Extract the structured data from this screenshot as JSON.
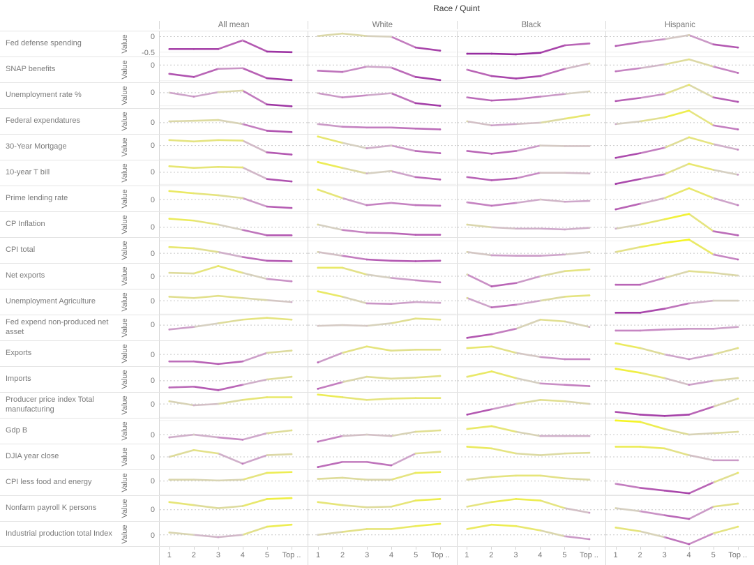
{
  "chart_data": {
    "type": "line",
    "layout": "small-multiples",
    "title": "Race / Quint",
    "column_headers": [
      "All mean",
      "White",
      "Black",
      "Hispanic"
    ],
    "x_categories": [
      "1",
      "2",
      "3",
      "4",
      "5",
      "Top .."
    ],
    "ylabel": "Value",
    "grid": "dashed-zero-line",
    "legend": "none",
    "color_encoding": {
      "encodes": "value",
      "low_color": "#8a1c97",
      "mid_color": "#d6d0c2",
      "high_color": "#fafa08",
      "stops": [
        [
          -0.65,
          "#8a1c97"
        ],
        [
          -0.45,
          "#a23ba6"
        ],
        [
          -0.28,
          "#b55cb3"
        ],
        [
          -0.15,
          "#c685c2"
        ],
        [
          -0.06,
          "#cfaacb"
        ],
        [
          0,
          "#d6d0c2"
        ],
        [
          0.07,
          "#dcd9a4"
        ],
        [
          0.18,
          "#e5e47e"
        ],
        [
          0.3,
          "#ecec57"
        ],
        [
          0.45,
          "#f4f42c"
        ],
        [
          0.6,
          "#fafa08"
        ]
      ]
    },
    "rows": [
      {
        "label": "Fed defense spending",
        "yticks": [
          0,
          -0.5
        ],
        "series": [
          [
            -0.4,
            -0.4,
            -0.4,
            -0.12,
            -0.48,
            -0.5
          ],
          [
            0.02,
            0.1,
            0.02,
            0.0,
            -0.35,
            -0.45
          ],
          [
            -0.55,
            -0.55,
            -0.57,
            -0.52,
            -0.28,
            -0.22
          ],
          [
            -0.3,
            -0.18,
            -0.08,
            0.05,
            -0.25,
            -0.35
          ]
        ]
      },
      {
        "label": "SNAP benefits",
        "yticks": [
          0
        ],
        "series": [
          [
            -0.28,
            -0.38,
            -0.12,
            -0.1,
            -0.42,
            -0.48
          ],
          [
            -0.18,
            -0.22,
            -0.05,
            -0.08,
            -0.38,
            -0.48
          ],
          [
            -0.15,
            -0.35,
            -0.43,
            -0.35,
            -0.12,
            0.05
          ],
          [
            -0.2,
            -0.1,
            0.02,
            0.18,
            -0.05,
            -0.25
          ]
        ]
      },
      {
        "label": "Unemployment rate %",
        "yticks": [
          0
        ],
        "series": [
          [
            0.0,
            -0.15,
            0.02,
            0.08,
            -0.45,
            -0.52
          ],
          [
            -0.02,
            -0.18,
            -0.1,
            -0.02,
            -0.4,
            -0.5
          ],
          [
            -0.18,
            -0.3,
            -0.25,
            -0.15,
            -0.05,
            0.05
          ],
          [
            -0.32,
            -0.2,
            -0.05,
            0.3,
            -0.18,
            -0.35
          ]
        ]
      },
      {
        "label": "Federal expendatures",
        "yticks": [
          0
        ],
        "series": [
          [
            0.05,
            0.07,
            0.1,
            -0.05,
            -0.3,
            -0.35
          ],
          [
            -0.05,
            -0.15,
            -0.18,
            -0.18,
            -0.22,
            -0.25
          ],
          [
            0.05,
            -0.1,
            -0.05,
            0.0,
            0.15,
            0.3
          ],
          [
            -0.05,
            0.05,
            0.2,
            0.45,
            -0.1,
            -0.25
          ]
        ]
      },
      {
        "label": "30-Year Mortgage",
        "yticks": [
          0
        ],
        "series": [
          [
            0.2,
            0.15,
            0.2,
            0.18,
            -0.25,
            -0.33
          ],
          [
            0.33,
            0.1,
            -0.1,
            0.0,
            -0.2,
            -0.28
          ],
          [
            -0.2,
            -0.3,
            -0.2,
            0.0,
            -0.02,
            -0.02
          ],
          [
            -0.45,
            -0.28,
            -0.08,
            0.3,
            0.05,
            -0.15
          ]
        ]
      },
      {
        "label": "10-year T bill",
        "yticks": [
          0
        ],
        "series": [
          [
            0.25,
            0.18,
            0.22,
            0.2,
            -0.28,
            -0.38
          ],
          [
            0.42,
            0.18,
            -0.05,
            0.05,
            -0.2,
            -0.3
          ],
          [
            -0.2,
            -0.33,
            -0.25,
            -0.02,
            -0.02,
            -0.05
          ],
          [
            -0.48,
            -0.28,
            -0.08,
            0.35,
            0.1,
            -0.1
          ]
        ]
      },
      {
        "label": "Prime lending rate",
        "yticks": [
          0
        ],
        "series": [
          [
            0.3,
            0.22,
            0.15,
            0.05,
            -0.25,
            -0.3
          ],
          [
            0.35,
            0.05,
            -0.2,
            -0.12,
            -0.2,
            -0.22
          ],
          [
            -0.1,
            -0.22,
            -0.12,
            0.0,
            -0.08,
            -0.05
          ],
          [
            -0.35,
            -0.15,
            0.05,
            0.4,
            0.05,
            -0.2
          ]
        ]
      },
      {
        "label": "CP Inflation",
        "yticks": [
          0
        ],
        "series": [
          [
            0.32,
            0.25,
            0.1,
            -0.1,
            -0.3,
            -0.3
          ],
          [
            0.1,
            -0.1,
            -0.2,
            -0.22,
            -0.28,
            -0.28
          ],
          [
            0.1,
            0.0,
            -0.05,
            -0.05,
            -0.08,
            -0.02
          ],
          [
            -0.05,
            0.1,
            0.3,
            0.5,
            -0.15,
            -0.3
          ]
        ]
      },
      {
        "label": "CPI total",
        "yticks": [
          0
        ],
        "series": [
          [
            0.25,
            0.2,
            0.05,
            -0.15,
            -0.3,
            -0.32
          ],
          [
            0.05,
            -0.1,
            -0.25,
            -0.3,
            -0.32,
            -0.3
          ],
          [
            0.05,
            -0.08,
            -0.1,
            -0.1,
            -0.05,
            0.05
          ],
          [
            0.05,
            0.25,
            0.42,
            0.55,
            -0.05,
            -0.25
          ]
        ]
      },
      {
        "label": "Net exports",
        "yticks": [
          0
        ],
        "series": [
          [
            0.1,
            0.08,
            0.3,
            0.1,
            -0.08,
            -0.15
          ],
          [
            0.25,
            0.25,
            0.05,
            -0.05,
            -0.12,
            -0.18
          ],
          [
            0.05,
            -0.3,
            -0.2,
            0.0,
            0.15,
            0.2
          ],
          [
            -0.25,
            -0.25,
            -0.05,
            0.15,
            0.1,
            0.02
          ]
        ]
      },
      {
        "label": "Unemployment Agriculture",
        "yticks": [
          0
        ],
        "series": [
          [
            0.15,
            0.1,
            0.18,
            0.1,
            0.02,
            -0.05
          ],
          [
            0.35,
            0.15,
            -0.1,
            -0.12,
            -0.05,
            -0.08
          ],
          [
            0.1,
            -0.25,
            -0.15,
            0.0,
            0.15,
            0.2
          ],
          [
            -0.45,
            -0.45,
            -0.3,
            -0.1,
            0.0,
            0.0
          ]
        ]
      },
      {
        "label": "Fed expend non-produced net asset",
        "yticks": [
          0
        ],
        "series": [
          [
            -0.12,
            -0.05,
            0.05,
            0.15,
            0.2,
            0.15
          ],
          [
            -0.02,
            0.0,
            -0.02,
            0.05,
            0.18,
            0.15
          ],
          [
            -0.35,
            -0.25,
            -0.1,
            0.15,
            0.1,
            -0.05
          ],
          [
            -0.15,
            -0.15,
            -0.12,
            -0.1,
            -0.1,
            -0.05
          ]
        ]
      },
      {
        "label": "Exports",
        "yticks": [
          0
        ],
        "series": [
          [
            -0.22,
            -0.22,
            -0.3,
            -0.22,
            0.05,
            0.12
          ],
          [
            -0.25,
            0.05,
            0.25,
            0.12,
            0.15,
            0.15
          ],
          [
            0.2,
            0.25,
            0.05,
            -0.08,
            -0.15,
            -0.15
          ],
          [
            0.35,
            0.2,
            0.0,
            -0.15,
            0.0,
            0.2
          ]
        ]
      },
      {
        "label": "Imports",
        "yticks": [
          0
        ],
        "series": [
          [
            -0.25,
            -0.22,
            -0.35,
            -0.15,
            0.05,
            0.15
          ],
          [
            -0.3,
            -0.05,
            0.15,
            0.08,
            0.12,
            0.18
          ],
          [
            0.15,
            0.35,
            0.1,
            -0.1,
            -0.15,
            -0.2
          ],
          [
            0.45,
            0.3,
            0.1,
            -0.15,
            0.0,
            0.1
          ]
        ]
      },
      {
        "label": "Producer price index Total manufacturing",
        "yticks": [
          0
        ],
        "series": [
          [
            0.1,
            -0.05,
            0.0,
            0.15,
            0.25,
            0.25
          ],
          [
            0.35,
            0.25,
            0.15,
            0.2,
            0.22,
            0.22
          ],
          [
            -0.4,
            -0.2,
            0.0,
            0.15,
            0.1,
            0.0
          ],
          [
            -0.3,
            -0.4,
            -0.45,
            -0.4,
            -0.1,
            0.2
          ]
        ]
      },
      {
        "label": "Gdp B",
        "yticks": [
          0
        ],
        "series": [
          [
            -0.1,
            0.0,
            -0.1,
            -0.18,
            0.05,
            0.15
          ],
          [
            -0.25,
            -0.05,
            0.0,
            -0.05,
            0.1,
            0.15
          ],
          [
            0.2,
            0.3,
            0.1,
            -0.05,
            -0.05,
            -0.05
          ],
          [
            0.5,
            0.45,
            0.2,
            0.0,
            0.05,
            0.1
          ]
        ]
      },
      {
        "label": "DJIA year close",
        "yticks": [
          0
        ],
        "series": [
          [
            0.0,
            0.2,
            0.1,
            -0.2,
            0.05,
            0.08
          ],
          [
            -0.3,
            -0.15,
            -0.15,
            -0.25,
            0.1,
            0.15
          ],
          [
            0.3,
            0.25,
            0.1,
            0.05,
            0.1,
            0.12
          ],
          [
            0.3,
            0.3,
            0.25,
            0.05,
            -0.1,
            -0.1
          ]
        ]
      },
      {
        "label": "CPI less food and energy",
        "yticks": [
          0
        ],
        "series": [
          [
            0.05,
            0.05,
            0.02,
            0.05,
            0.3,
            0.33
          ],
          [
            0.08,
            0.12,
            0.05,
            0.05,
            0.3,
            0.33
          ],
          [
            0.05,
            0.15,
            0.2,
            0.2,
            0.1,
            0.05
          ],
          [
            -0.1,
            -0.25,
            -0.35,
            -0.45,
            -0.05,
            0.3
          ]
        ]
      },
      {
        "label": "Nonfarm payroll K persons",
        "yticks": [
          0
        ],
        "series": [
          [
            0.25,
            0.15,
            0.05,
            0.12,
            0.35,
            0.38
          ],
          [
            0.25,
            0.15,
            0.08,
            0.1,
            0.3,
            0.35
          ],
          [
            0.1,
            0.25,
            0.35,
            0.3,
            0.05,
            -0.1
          ],
          [
            0.05,
            -0.05,
            -0.18,
            -0.3,
            0.1,
            0.2
          ]
        ]
      },
      {
        "label": "Industrial production total Index",
        "yticks": [
          0
        ],
        "series": [
          [
            0.08,
            0.0,
            -0.08,
            0.0,
            0.28,
            0.35
          ],
          [
            0.0,
            0.1,
            0.2,
            0.2,
            0.3,
            0.38
          ],
          [
            0.2,
            0.35,
            0.3,
            0.15,
            -0.05,
            -0.15
          ],
          [
            0.25,
            0.12,
            -0.08,
            -0.32,
            0.05,
            0.28
          ]
        ]
      }
    ]
  }
}
